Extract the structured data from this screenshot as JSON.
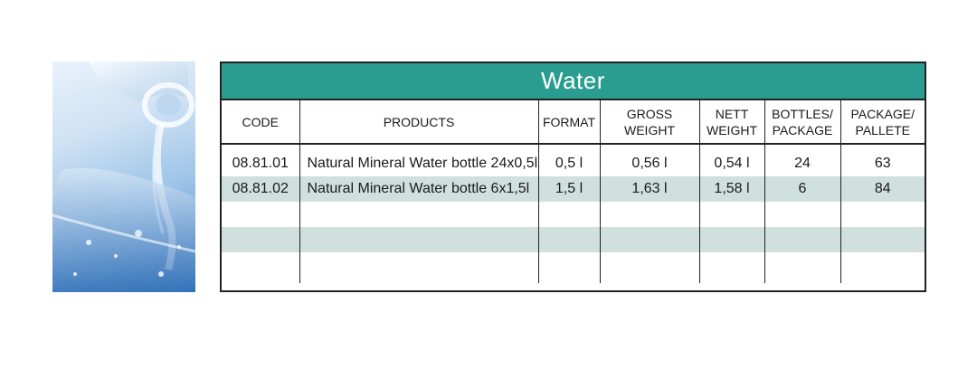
{
  "table": {
    "title": "Water",
    "columns": [
      {
        "lines": [
          "CODE"
        ]
      },
      {
        "lines": [
          "PRODUCTS"
        ]
      },
      {
        "lines": [
          "FORMAT"
        ]
      },
      {
        "lines": [
          "GROSS",
          "WEIGHT"
        ]
      },
      {
        "lines": [
          "NETT",
          "WEIGHT"
        ]
      },
      {
        "lines": [
          "BOTTLES/",
          "PACKAGE"
        ]
      },
      {
        "lines": [
          "PACKAGE/",
          "PALLETE"
        ]
      }
    ],
    "rows": [
      {
        "code": "08.81.01",
        "product": "Natural Mineral Water bottle 24x0,5l",
        "format": "0,5 l",
        "gross": "0,56 l",
        "nett": "0,54 l",
        "bottles": "24",
        "packages": "63"
      },
      {
        "code": "08.81.02",
        "product": "Natural Mineral Water bottle 6x1,5l",
        "format": "1,5 l",
        "gross": "1,63 l",
        "nett": "1,58 l",
        "bottles": "6",
        "packages": "84"
      },
      {
        "code": "",
        "product": "",
        "format": "",
        "gross": "",
        "nett": "",
        "bottles": "",
        "packages": ""
      },
      {
        "code": "",
        "product": "",
        "format": "",
        "gross": "",
        "nett": "",
        "bottles": "",
        "packages": ""
      },
      {
        "code": "",
        "product": "",
        "format": "",
        "gross": "",
        "nett": "",
        "bottles": "",
        "packages": ""
      }
    ]
  },
  "colors": {
    "title_bar": "#2a9d90",
    "alt_row": "#cfe0de",
    "border": "#222222"
  }
}
